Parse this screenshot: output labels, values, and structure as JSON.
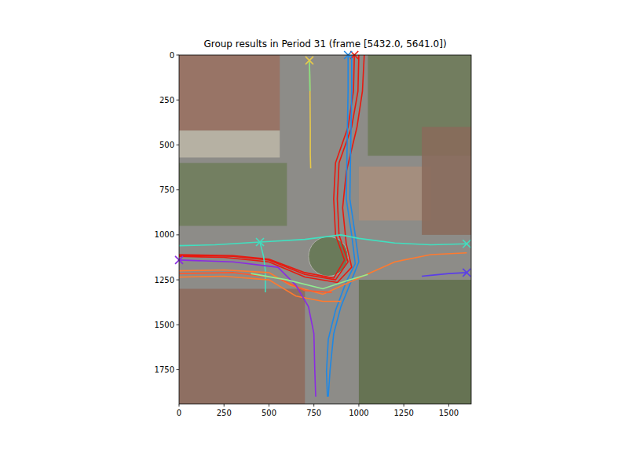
{
  "chart_data": {
    "type": "line",
    "title": "Group results in Period 31 (frame [5432.0, 5641.0])",
    "xlim": [
      0,
      1625
    ],
    "ylim": [
      1940,
      0
    ],
    "xticks": [
      0,
      250,
      500,
      750,
      1000,
      1250,
      1500
    ],
    "yticks": [
      0,
      250,
      500,
      750,
      1000,
      1250,
      1500,
      1750
    ],
    "grid": false,
    "series": [
      {
        "color": "#e6c84a",
        "marker": "x",
        "x": [
          725,
          728,
          730,
          730,
          732
        ],
        "values": [
          30,
          200,
          400,
          550,
          630
        ]
      },
      {
        "color": "#7de08a",
        "x": [
          725,
          727,
          728
        ],
        "values": [
          30,
          100,
          200
        ]
      },
      {
        "color": "#e8190f",
        "x": [
          1000,
          995,
          960,
          890,
          880,
          890,
          940,
          870,
          700,
          500,
          300,
          100,
          0
        ],
        "values": [
          0,
          200,
          400,
          600,
          800,
          1000,
          1150,
          1250,
          1220,
          1140,
          1120,
          1115,
          1115
        ]
      },
      {
        "color": "#e8190f",
        "x": [
          1030,
          1020,
          990,
          930,
          910,
          930,
          960,
          880,
          700,
          500,
          250,
          0
        ],
        "values": [
          0,
          200,
          400,
          650,
          850,
          1050,
          1180,
          1265,
          1235,
          1150,
          1125,
          1120
        ]
      },
      {
        "color": "#e8190f",
        "marker": "x",
        "x": [
          975,
          970,
          940,
          870,
          860,
          870,
          920,
          860,
          700,
          500,
          300,
          0
        ],
        "values": [
          0,
          200,
          400,
          600,
          800,
          1000,
          1140,
          1240,
          1210,
          1135,
          1115,
          1110
        ]
      },
      {
        "color": "#1e88e5",
        "x": [
          960,
          960,
          955,
          950,
          980,
          1000,
          960,
          900,
          860,
          840,
          830
        ],
        "values": [
          0,
          200,
          500,
          800,
          1000,
          1150,
          1250,
          1400,
          1550,
          1750,
          1900
        ]
      },
      {
        "color": "#1e88e5",
        "marker": "x",
        "x": [
          940,
          940,
          935,
          930,
          960,
          980,
          930,
          870,
          830,
          820,
          825
        ],
        "values": [
          0,
          200,
          500,
          800,
          1000,
          1160,
          1260,
          1420,
          1580,
          1760,
          1900
        ]
      },
      {
        "color": "#40e0c0",
        "marker": "x",
        "x": [
          450,
          470,
          480,
          480
        ],
        "values": [
          1040,
          1120,
          1200,
          1320
        ]
      },
      {
        "color": "#40e0c0",
        "marker": "x",
        "x": [
          1600,
          1400,
          1200,
          1000,
          900,
          700,
          450,
          200,
          0
        ],
        "values": [
          1050,
          1055,
          1045,
          1020,
          1000,
          1025,
          1040,
          1055,
          1060
        ]
      },
      {
        "color": "#ff7a2f",
        "x": [
          0,
          250,
          500,
          620,
          800,
          1000,
          1200,
          1400,
          1600
        ],
        "values": [
          1200,
          1195,
          1210,
          1280,
          1330,
          1240,
          1150,
          1110,
          1100
        ]
      },
      {
        "color": "#ff7a2f",
        "x": [
          0,
          250,
          500,
          650,
          800,
          900
        ],
        "values": [
          1235,
          1230,
          1250,
          1340,
          1370,
          1370
        ]
      },
      {
        "color": "#ff5a2f",
        "x": [
          0,
          300,
          550,
          700,
          850
        ],
        "values": [
          1215,
          1210,
          1240,
          1310,
          1320
        ]
      },
      {
        "color": "#8a2be2",
        "marker": "x",
        "x": [
          0,
          300,
          550,
          650,
          720,
          750,
          755,
          760
        ],
        "values": [
          1140,
          1150,
          1180,
          1280,
          1400,
          1550,
          1750,
          1900
        ]
      },
      {
        "color": "#5b3ee8",
        "marker": "x",
        "x": [
          1600,
          1500,
          1400,
          1350
        ],
        "values": [
          1210,
          1215,
          1225,
          1230
        ]
      },
      {
        "color": "#90ee90",
        "x": [
          400,
          600,
          800,
          950,
          1050
        ],
        "values": [
          1215,
          1250,
          1300,
          1250,
          1220
        ]
      }
    ]
  }
}
